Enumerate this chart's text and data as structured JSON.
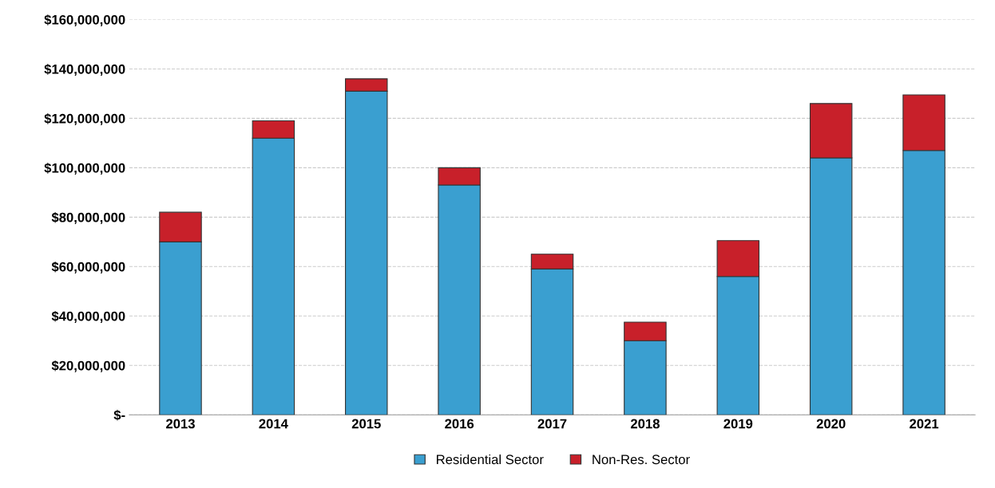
{
  "chart_data": {
    "type": "bar",
    "stacked": true,
    "categories": [
      "2013",
      "2014",
      "2015",
      "2016",
      "2017",
      "2018",
      "2019",
      "2020",
      "2021"
    ],
    "series": [
      {
        "name": "Residential Sector",
        "color": "#3a9fd0",
        "values": [
          70000000,
          112000000,
          131000000,
          93000000,
          59000000,
          30000000,
          56000000,
          104000000,
          107000000
        ]
      },
      {
        "name": "Non-Res. Sector",
        "color": "#c8202a",
        "values": [
          12000000,
          7000000,
          5000000,
          7000000,
          6000000,
          7500000,
          14500000,
          22000000,
          22500000
        ]
      }
    ],
    "ylim": [
      0,
      160000000
    ],
    "yticks": [
      {
        "value": 0,
        "label": "$-"
      },
      {
        "value": 20000000,
        "label": "$20,000,000"
      },
      {
        "value": 40000000,
        "label": "$40,000,000"
      },
      {
        "value": 60000000,
        "label": "$60,000,000"
      },
      {
        "value": 80000000,
        "label": "$80,000,000"
      },
      {
        "value": 100000000,
        "label": "$100,000,000"
      },
      {
        "value": 120000000,
        "label": "$120,000,000"
      },
      {
        "value": 140000000,
        "label": "$140,000,000"
      },
      {
        "value": 160000000,
        "label": "$160,000,000"
      }
    ],
    "grid": "y",
    "legend": "bottom"
  }
}
